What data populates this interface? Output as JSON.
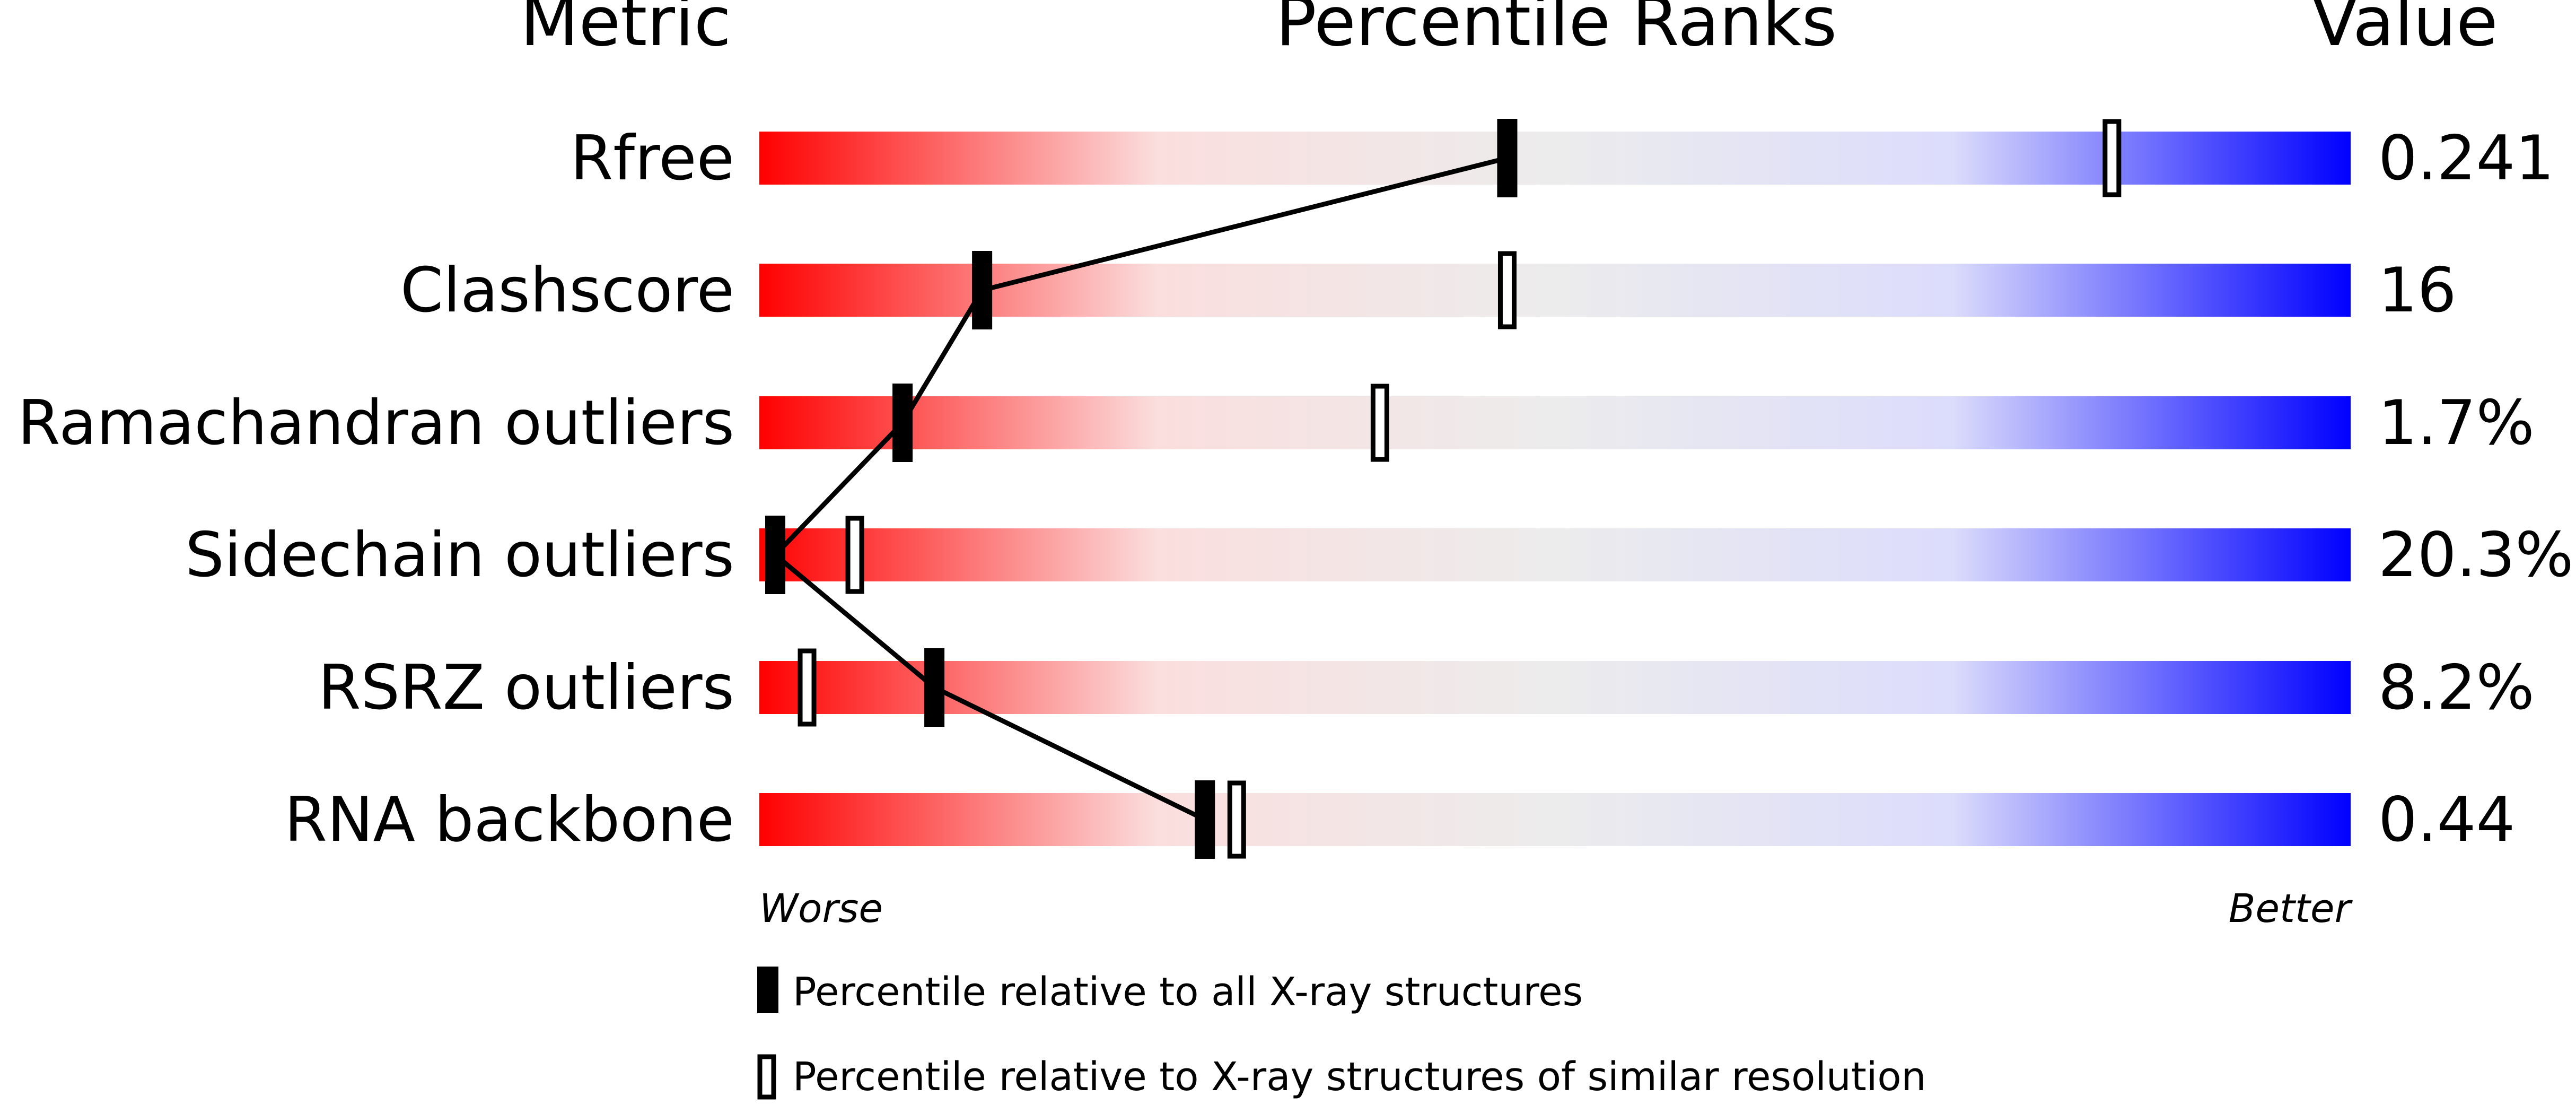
{
  "chart_data": {
    "type": "bar",
    "headers": {
      "metric": "Metric",
      "ranks": "Percentile Ranks",
      "value": "Value"
    },
    "scale": {
      "worse_label": "Worse",
      "better_label": "Better",
      "xlim": [
        0,
        100
      ],
      "gradient_colors": [
        "#ff0000",
        "#fbdede",
        "#ececec",
        "#dcdcfc",
        "#0000ff"
      ]
    },
    "categories": [
      "Rfree",
      "Clashscore",
      "Ramachandran outliers",
      "Sidechain outliers",
      "RSRZ outliers",
      "RNA backbone"
    ],
    "values": [
      "0.241",
      "16",
      "1.7%",
      "20.3%",
      "8.2%",
      "0.44"
    ],
    "series": [
      {
        "name": "Percentile relative to all X-ray structures",
        "marker": "filled",
        "values": [
          47,
          14,
          9,
          1,
          11,
          28
        ]
      },
      {
        "name": "Percentile relative to X-ray structures of similar resolution",
        "marker": "hollow",
        "values": [
          85,
          47,
          39,
          6,
          3,
          30
        ]
      }
    ]
  }
}
